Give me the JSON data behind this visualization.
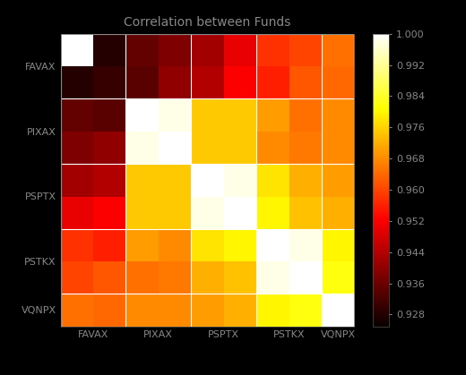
{
  "title": "Correlation between Funds",
  "labels": [
    "FAVAX",
    "PIXAX",
    "PSPTX",
    "PSTKX",
    "VQNPX"
  ],
  "corr_matrix": [
    [
      1.0,
      0.928,
      0.935,
      0.938,
      0.942,
      0.95,
      0.958,
      0.96,
      0.965
    ],
    [
      0.928,
      0.93,
      0.934,
      0.94,
      0.944,
      0.952,
      0.956,
      0.962,
      0.964
    ],
    [
      0.935,
      0.934,
      1.0,
      0.998,
      0.975,
      0.975,
      0.97,
      0.965,
      0.968
    ],
    [
      0.938,
      0.94,
      0.998,
      1.0,
      0.975,
      0.975,
      0.968,
      0.966,
      0.968
    ],
    [
      0.942,
      0.944,
      0.975,
      0.975,
      1.0,
      0.998,
      0.978,
      0.972,
      0.97
    ],
    [
      0.95,
      0.952,
      0.975,
      0.975,
      0.998,
      1.0,
      0.98,
      0.974,
      0.972
    ],
    [
      0.958,
      0.956,
      0.97,
      0.968,
      0.978,
      0.98,
      1.0,
      0.998,
      0.98
    ],
    [
      0.96,
      0.962,
      0.965,
      0.966,
      0.972,
      0.974,
      0.998,
      1.0,
      0.982
    ],
    [
      0.965,
      0.964,
      0.968,
      0.968,
      0.97,
      0.972,
      0.98,
      0.982,
      1.0
    ]
  ],
  "vmin": 0.925,
  "vmax": 1.0,
  "colormap": "hot",
  "title_fontsize": 10,
  "label_fontsize": 8,
  "tick_fontsize": 8,
  "background_color": "#000000",
  "fig_facecolor": "#000000",
  "colorbar_ticks": [
    0.928,
    0.936,
    0.944,
    0.952,
    0.96,
    0.968,
    0.976,
    0.984,
    0.992,
    1.0
  ],
  "group_ticks": [
    0.5,
    2.5,
    4.5,
    6.5,
    8.0
  ],
  "n_sub": [
    2,
    2,
    2,
    2,
    1
  ]
}
